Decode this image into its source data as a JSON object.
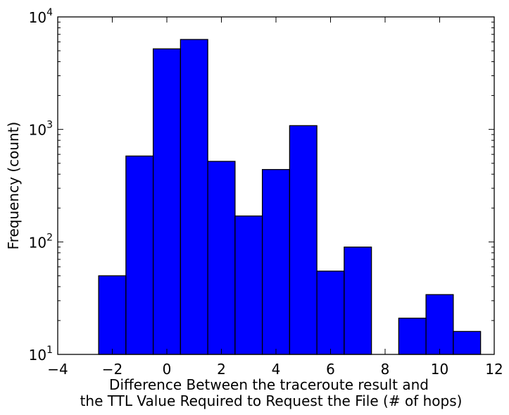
{
  "chart_data": {
    "type": "bar",
    "title": "",
    "xlabel_lines": [
      "Difference Between the traceroute result and",
      "the TTL Value Required to Request the File (# of hops)"
    ],
    "ylabel": "Frequency (count)",
    "xlim": [
      -4,
      12
    ],
    "ylim": [
      10,
      10000
    ],
    "yscale": "log",
    "grid": false,
    "x_ticks": [
      -4,
      -2,
      0,
      2,
      4,
      6,
      8,
      10,
      12
    ],
    "y_ticks": [
      {
        "value": 10,
        "base": "10",
        "exp": "1"
      },
      {
        "value": 100,
        "base": "10",
        "exp": "2"
      },
      {
        "value": 1000,
        "base": "10",
        "exp": "3"
      },
      {
        "value": 10000,
        "base": "10",
        "exp": "4"
      }
    ],
    "bar_color": "#0000ff",
    "edge_color": "#000000",
    "bin_width": 1,
    "bins": [
      {
        "x": -2,
        "count": 50
      },
      {
        "x": -1,
        "count": 580
      },
      {
        "x": 0,
        "count": 5200
      },
      {
        "x": 1,
        "count": 6300
      },
      {
        "x": 2,
        "count": 520
      },
      {
        "x": 3,
        "count": 170
      },
      {
        "x": 4,
        "count": 440
      },
      {
        "x": 5,
        "count": 1080
      },
      {
        "x": 6,
        "count": 55
      },
      {
        "x": 7,
        "count": 90
      },
      {
        "x": 9,
        "count": 21
      },
      {
        "x": 10,
        "count": 34
      },
      {
        "x": 11,
        "count": 16
      }
    ]
  }
}
